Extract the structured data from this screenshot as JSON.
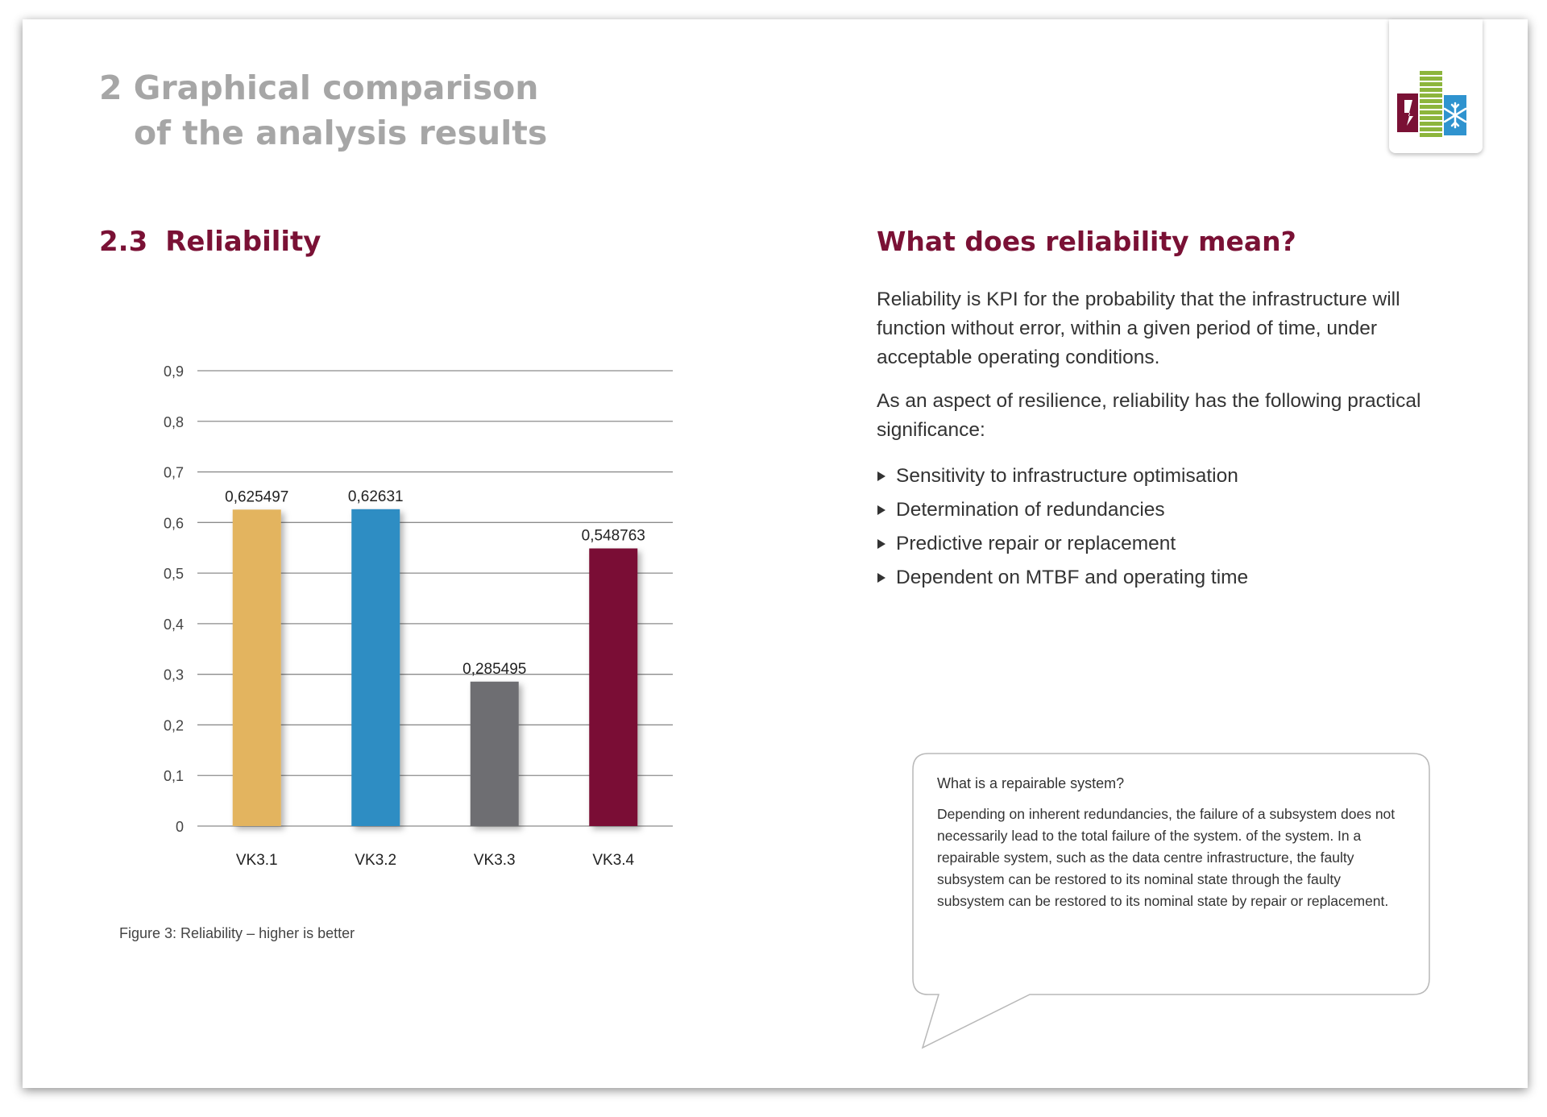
{
  "page": {
    "title_line1": "2 Graphical comparison",
    "title_line2": "of the analysis results"
  },
  "logo": {
    "icon": "power-battery-cooling-logo",
    "colors": {
      "power": "#7a1135",
      "battery": "#8db53c",
      "cooling": "#2f93cf"
    }
  },
  "section": {
    "number": "2.3",
    "title": "Reliability"
  },
  "chart_data": {
    "type": "bar",
    "categories": [
      "VK3.1",
      "VK3.2",
      "VK3.3",
      "VK3.4"
    ],
    "values": [
      0.625497,
      0.62631,
      0.285495,
      0.548763
    ],
    "data_labels": [
      "0,625497",
      "0,62631",
      "0,285495",
      "0,548763"
    ],
    "colors": [
      "#e3b45f",
      "#2e8dc3",
      "#6e6e72",
      "#7a1135"
    ],
    "ylim": [
      0,
      0.9
    ],
    "yticks": [
      "0",
      "0,1",
      "0,2",
      "0,3",
      "0,4",
      "0,5",
      "0,6",
      "0,7",
      "0,8",
      "0,9"
    ],
    "grid": true,
    "legend": "none",
    "title": "",
    "xlabel": "",
    "ylabel": ""
  },
  "figure_caption": "Figure 3: Reliability – higher is better",
  "side": {
    "title": "What does reliability mean?",
    "paragraph1": "Reliability is KPI for the probability that the infrastructure will function without error, within a given period of time, under acceptable operating conditions.",
    "paragraph2": "As an aspect of resilience, reliability has the following practical significance:",
    "bullets": [
      "Sensitivity to infrastructure optimisation",
      "Determination of redundancies",
      "Predictive repair or replacement",
      "Dependent on MTBF and operating time"
    ]
  },
  "callout": {
    "title": "What is a repairable system?",
    "body": "Depending on inherent redundancies, the failure of a subsystem does not necessarily lead to the total failure of the system. of the system. In a repairable system, such as the data centre infrastructure, the faulty subsystem can be restored to its nominal state through the faulty subsystem can be restored to its nominal state by repair or replacement."
  }
}
